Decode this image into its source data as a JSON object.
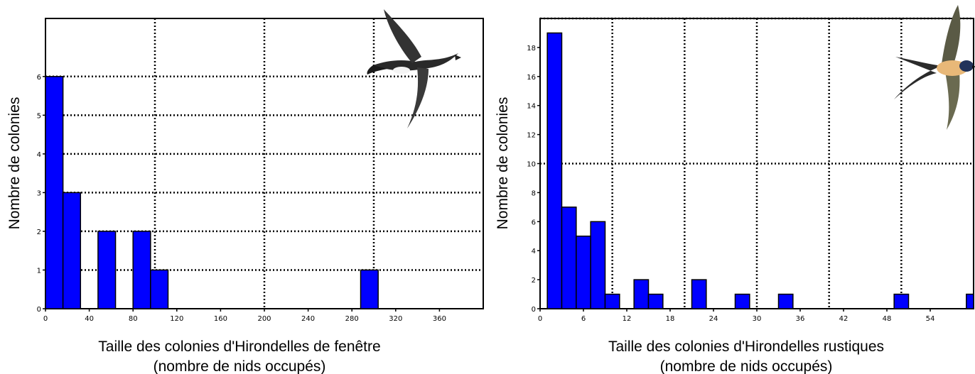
{
  "colors": {
    "bar": "#0000ff",
    "bar_edge": "#000000",
    "grid": "#000000"
  },
  "chart_data": [
    {
      "type": "bar",
      "title": "",
      "xlabel": "Taille des colonies d'Hirondelles de fenêtre",
      "xlabel_line2": "(nombre de nids occupés)",
      "ylabel": "Nombre de colonies",
      "xlim": [
        0,
        400
      ],
      "ylim": [
        0,
        7.5
      ],
      "x_ticks": [
        0,
        40,
        80,
        120,
        160,
        200,
        240,
        280,
        320,
        360
      ],
      "x_tick_labels": [
        "0",
        "40",
        "80",
        "120",
        "160",
        "200",
        "240",
        "280",
        "320",
        "360"
      ],
      "y_ticks": [
        0,
        1,
        2,
        3,
        4,
        5,
        6
      ],
      "y_tick_labels": [
        "0",
        "1",
        "2",
        "3",
        "4",
        "5",
        "6"
      ],
      "bars": [
        {
          "x0": 0,
          "x1": 16,
          "value": 6
        },
        {
          "x0": 16,
          "x1": 32,
          "value": 3
        },
        {
          "x0": 48,
          "x1": 64,
          "value": 2
        },
        {
          "x0": 80,
          "x1": 96,
          "value": 2
        },
        {
          "x0": 96,
          "x1": 112,
          "value": 1
        },
        {
          "x0": 288,
          "x1": 304,
          "value": 1
        }
      ],
      "grid": true,
      "grid_x": [
        100,
        200,
        300
      ],
      "grid_y": [
        1,
        2,
        3,
        4,
        5,
        6
      ],
      "image": "house-martin-bird"
    },
    {
      "type": "bar",
      "title": "",
      "xlabel": "Taille des colonies d'Hirondelles rustiques",
      "xlabel_line2": "(nombre de nids occupés)",
      "ylabel": "Nombre de colonies",
      "xlim": [
        0,
        60
      ],
      "ylim": [
        0,
        20
      ],
      "x_ticks": [
        0,
        6,
        12,
        18,
        24,
        30,
        36,
        42,
        48,
        54
      ],
      "x_tick_labels": [
        "0",
        "6",
        "12",
        "18",
        "24",
        "30",
        "36",
        "42",
        "48",
        "54"
      ],
      "y_ticks": [
        0,
        2,
        4,
        6,
        8,
        10,
        12,
        14,
        16,
        18
      ],
      "y_tick_labels": [
        "0",
        "2",
        "4",
        "6",
        "8",
        "10",
        "12",
        "14",
        "16",
        "18"
      ],
      "bars": [
        {
          "x0": 1,
          "x1": 3,
          "value": 19
        },
        {
          "x0": 3,
          "x1": 5,
          "value": 7
        },
        {
          "x0": 5,
          "x1": 7,
          "value": 5
        },
        {
          "x0": 7,
          "x1": 9,
          "value": 6
        },
        {
          "x0": 9,
          "x1": 11,
          "value": 1
        },
        {
          "x0": 13,
          "x1": 15,
          "value": 2
        },
        {
          "x0": 15,
          "x1": 17,
          "value": 1
        },
        {
          "x0": 21,
          "x1": 23,
          "value": 2
        },
        {
          "x0": 27,
          "x1": 29,
          "value": 1
        },
        {
          "x0": 33,
          "x1": 35,
          "value": 1
        },
        {
          "x0": 49,
          "x1": 51,
          "value": 1
        },
        {
          "x0": 59,
          "x1": 61,
          "value": 1
        }
      ],
      "grid": true,
      "grid_x": [
        10,
        20,
        30,
        40,
        50
      ],
      "grid_y": [
        10,
        20
      ],
      "image": "barn-swallow-bird"
    }
  ]
}
